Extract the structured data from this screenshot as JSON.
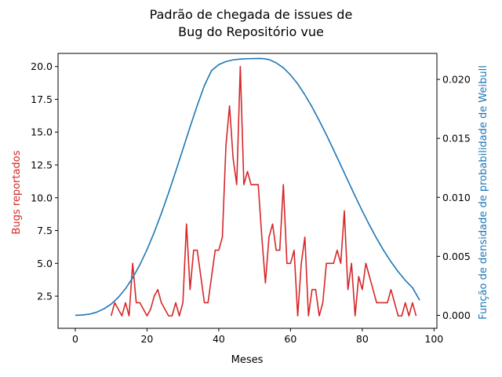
{
  "chart_data": {
    "type": "line",
    "title": [
      "Padrão de chegada de issues de",
      "Bug do Repositório vue"
    ],
    "xlabel": "Meses",
    "ylabel_left": "Bugs reportados",
    "ylabel_right": "Função de densidade de probabilidade de Weibull",
    "xlim": [
      -4.8,
      100.8
    ],
    "ylim_left": [
      0.05,
      21.0
    ],
    "ylim_right": [
      -0.0011,
      0.0222
    ],
    "x_ticks": [
      0,
      20,
      40,
      60,
      80,
      100
    ],
    "y_left_ticks": [
      2.5,
      5.0,
      7.5,
      10.0,
      12.5,
      15.0,
      17.5,
      20.0
    ],
    "y_right_ticks": [
      0.0,
      0.005,
      0.01,
      0.015,
      0.02
    ],
    "y_left_tick_labels": [
      "2.5",
      "5.0",
      "7.5",
      "10.0",
      "12.5",
      "15.0",
      "17.5",
      "20.0"
    ],
    "y_right_tick_labels": [
      "0.000",
      "0.005",
      "0.010",
      "0.015",
      "0.020"
    ],
    "colors": {
      "bugs": "#d62728",
      "weibull": "#1f77b4"
    },
    "series": [
      {
        "axis": "left",
        "color": "#d62728",
        "x": [
          10,
          11,
          12,
          13,
          14,
          15,
          16,
          17,
          18,
          19,
          20,
          21,
          22,
          23,
          24,
          25,
          26,
          27,
          28,
          29,
          30,
          31,
          32,
          33,
          34,
          35,
          36,
          37,
          38,
          39,
          40,
          41,
          42,
          43,
          44,
          45,
          46,
          47,
          48,
          49,
          50,
          51,
          52,
          53,
          54,
          55,
          56,
          57,
          58,
          59,
          60,
          61,
          62,
          63,
          64,
          65,
          66,
          67,
          68,
          69,
          70,
          71,
          72,
          73,
          74,
          75,
          76,
          77,
          78,
          79,
          80,
          81,
          82,
          83,
          84,
          85,
          86,
          87,
          88,
          89,
          90,
          91,
          92,
          93,
          94,
          95
        ],
        "values": [
          1,
          2,
          1.5,
          1,
          2,
          1,
          5,
          2,
          2,
          1.5,
          1,
          1.5,
          2.5,
          3,
          2,
          1.5,
          1,
          1,
          2,
          1,
          2,
          8,
          3,
          6,
          6,
          4,
          2,
          2,
          4,
          6,
          6,
          7,
          14,
          17,
          13,
          11,
          20,
          11,
          12,
          11,
          11,
          11,
          7,
          3.5,
          7,
          8,
          6,
          6,
          11,
          5,
          5,
          6,
          1,
          5,
          7,
          1,
          3,
          3,
          1,
          2,
          5,
          5,
          5,
          6,
          5,
          9,
          3,
          5,
          1,
          4,
          3,
          5,
          4,
          3,
          2,
          2,
          2,
          2,
          3,
          2,
          1,
          1,
          2,
          1,
          2,
          1
        ]
      },
      {
        "axis": "right",
        "color": "#1f77b4",
        "x": [
          0,
          2,
          4,
          6,
          8,
          10,
          12,
          14,
          16,
          18,
          20,
          22,
          24,
          26,
          28,
          30,
          32,
          34,
          36,
          38,
          40,
          42,
          44,
          46,
          48,
          50,
          52,
          54,
          56,
          58,
          60,
          62,
          64,
          66,
          68,
          70,
          72,
          74,
          76,
          78,
          80,
          82,
          84,
          86,
          88,
          90,
          92,
          94,
          96
        ],
        "values": [
          0.0,
          3e-05,
          0.0001,
          0.00027,
          0.00055,
          0.00095,
          0.00152,
          0.00226,
          0.00318,
          0.00428,
          0.00557,
          0.00703,
          0.00864,
          0.01037,
          0.0122,
          0.01408,
          0.01597,
          0.01779,
          0.01948,
          0.02075,
          0.02125,
          0.02151,
          0.02165,
          0.02172,
          0.02175,
          0.02176,
          0.02177,
          0.02168,
          0.0214,
          0.02098,
          0.02037,
          0.01962,
          0.01869,
          0.01766,
          0.01651,
          0.0153,
          0.01402,
          0.01272,
          0.01141,
          0.01011,
          0.00885,
          0.00765,
          0.00652,
          0.00548,
          0.00454,
          0.0037,
          0.00296,
          0.00234,
          0.00128
        ]
      }
    ]
  }
}
